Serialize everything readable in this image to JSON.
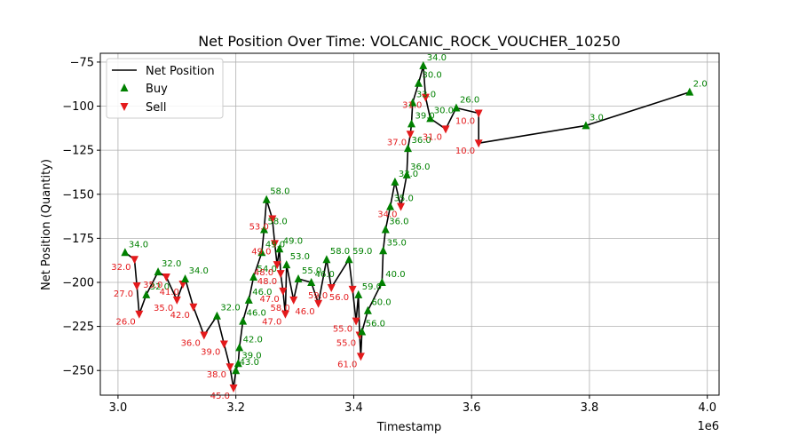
{
  "chart_data": {
    "type": "line",
    "title": "Net Position Over Time: VOLCANIC_ROCK_VOUCHER_10250",
    "xlabel": "Timestamp",
    "ylabel": "Net Position (Quantity)",
    "x_offset_label": "1e6",
    "xlim": [
      2.97,
      4.02
    ],
    "ylim": [
      -264,
      -70
    ],
    "xticks": [
      3.0,
      3.2,
      3.4,
      3.6,
      3.8,
      4.0
    ],
    "xtick_labels": [
      "3.0",
      "3.2",
      "3.4",
      "3.6",
      "3.8",
      "4.0"
    ],
    "yticks": [
      -75,
      -100,
      -125,
      -150,
      -175,
      -200,
      -225,
      -250
    ],
    "ytick_labels": [
      "−75",
      "−100",
      "−125",
      "−150",
      "−175",
      "−200",
      "−225",
      "−250"
    ],
    "grid": true,
    "legend_position": "top-left",
    "legend": [
      {
        "label": "Net Position",
        "kind": "line"
      },
      {
        "label": "Buy",
        "kind": "buy"
      },
      {
        "label": "Sell",
        "kind": "sell"
      }
    ],
    "colors": {
      "line": "#000000",
      "buy": "#008000",
      "sell": "#e41a1c"
    },
    "series": [
      {
        "name": "Net Position",
        "points": [
          {
            "x": 3.012,
            "y": -183,
            "side": "buy",
            "label": "34.0"
          },
          {
            "x": 3.028,
            "y": -187,
            "side": "sell",
            "label": "32.0"
          },
          {
            "x": 3.032,
            "y": -202,
            "side": "sell",
            "label": "27.0"
          },
          {
            "x": 3.036,
            "y": -218,
            "side": "sell",
            "label": "26.0"
          },
          {
            "x": 3.048,
            "y": -207,
            "side": "buy",
            "label": "32.0"
          },
          {
            "x": 3.068,
            "y": -194,
            "side": "buy",
            "label": "32.0"
          },
          {
            "x": 3.082,
            "y": -197,
            "side": "sell",
            "label": "35.0"
          },
          {
            "x": 3.1,
            "y": -210,
            "side": "sell",
            "label": "35.0"
          },
          {
            "x": 3.11,
            "y": -201,
            "side": "sell",
            "label": "41.0"
          },
          {
            "x": 3.114,
            "y": -198,
            "side": "buy",
            "label": "34.0"
          },
          {
            "x": 3.128,
            "y": -214,
            "side": "sell",
            "label": "42.0"
          },
          {
            "x": 3.146,
            "y": -230,
            "side": "sell",
            "label": "36.0"
          },
          {
            "x": 3.168,
            "y": -219,
            "side": "buy",
            "label": "32.0"
          },
          {
            "x": 3.18,
            "y": -235,
            "side": "sell",
            "label": "39.0"
          },
          {
            "x": 3.19,
            "y": -248,
            "side": "sell",
            "label": "38.0"
          },
          {
            "x": 3.196,
            "y": -260,
            "side": "sell",
            "label": "45.0"
          },
          {
            "x": 3.2,
            "y": -250,
            "side": "buy",
            "label": "43.0"
          },
          {
            "x": 3.204,
            "y": -246,
            "side": "buy",
            "label": "39.0"
          },
          {
            "x": 3.206,
            "y": -237,
            "side": "buy",
            "label": "42.0"
          },
          {
            "x": 3.212,
            "y": -222,
            "side": "buy",
            "label": "46.0"
          },
          {
            "x": 3.222,
            "y": -210,
            "side": "buy",
            "label": "46.0"
          },
          {
            "x": 3.23,
            "y": -197,
            "side": "buy",
            "label": "54.0"
          },
          {
            "x": 3.244,
            "y": -183,
            "side": "buy",
            "label": "49.0"
          },
          {
            "x": 3.248,
            "y": -170,
            "side": "buy",
            "label": "58.0"
          },
          {
            "x": 3.252,
            "y": -153,
            "side": "buy",
            "label": "58.0"
          },
          {
            "x": 3.262,
            "y": -164,
            "side": "sell",
            "label": "53.0"
          },
          {
            "x": 3.266,
            "y": -178,
            "side": "sell",
            "label": "49.0"
          },
          {
            "x": 3.27,
            "y": -190,
            "side": "sell",
            "label": "48.0"
          },
          {
            "x": 3.274,
            "y": -181,
            "side": "buy",
            "label": "49.0"
          },
          {
            "x": 3.276,
            "y": -195,
            "side": "sell",
            "label": "48.0"
          },
          {
            "x": 3.28,
            "y": -205,
            "side": "sell",
            "label": "47.0"
          },
          {
            "x": 3.284,
            "y": -218,
            "side": "sell",
            "label": "47.0"
          },
          {
            "x": 3.286,
            "y": -190,
            "side": "buy",
            "label": "53.0"
          },
          {
            "x": 3.298,
            "y": -210,
            "side": "sell",
            "label": "58.0"
          },
          {
            "x": 3.306,
            "y": -198,
            "side": "buy",
            "label": "55.0"
          },
          {
            "x": 3.328,
            "y": -200,
            "side": "buy",
            "label": "46.0"
          },
          {
            "x": 3.34,
            "y": -212,
            "side": "sell",
            "label": "46.0"
          },
          {
            "x": 3.354,
            "y": -187,
            "side": "buy",
            "label": "58.0"
          },
          {
            "x": 3.362,
            "y": -203,
            "side": "sell",
            "label": "59.0"
          },
          {
            "x": 3.392,
            "y": -187,
            "side": "buy",
            "label": "59.0"
          },
          {
            "x": 3.398,
            "y": -204,
            "side": "sell",
            "label": "56.0"
          },
          {
            "x": 3.404,
            "y": -222,
            "side": "sell",
            "label": "55.0"
          },
          {
            "x": 3.408,
            "y": -207,
            "side": "buy",
            "label": "59.0"
          },
          {
            "x": 3.41,
            "y": -230,
            "side": "sell",
            "label": "55.0"
          },
          {
            "x": 3.412,
            "y": -242,
            "side": "sell",
            "label": "61.0"
          },
          {
            "x": 3.414,
            "y": -228,
            "side": "buy",
            "label": "56.0"
          },
          {
            "x": 3.424,
            "y": -216,
            "side": "buy",
            "label": "60.0"
          },
          {
            "x": 3.448,
            "y": -200,
            "side": "buy",
            "label": "40.0"
          },
          {
            "x": 3.45,
            "y": -182,
            "side": "buy",
            "label": "35.0"
          },
          {
            "x": 3.454,
            "y": -170,
            "side": "buy",
            "label": "36.0"
          },
          {
            "x": 3.462,
            "y": -157,
            "side": "buy",
            "label": "35.0"
          },
          {
            "x": 3.47,
            "y": -143,
            "side": "buy",
            "label": "33.0"
          },
          {
            "x": 3.48,
            "y": -157,
            "side": "sell",
            "label": "34.0"
          },
          {
            "x": 3.49,
            "y": -139,
            "side": "buy",
            "label": "36.0"
          },
          {
            "x": 3.492,
            "y": -124,
            "side": "buy",
            "label": "36.0"
          },
          {
            "x": 3.496,
            "y": -116,
            "side": "sell",
            "label": "37.0"
          },
          {
            "x": 3.498,
            "y": -110,
            "side": "buy",
            "label": "39.0"
          },
          {
            "x": 3.5,
            "y": -98,
            "side": "buy",
            "label": "33.0"
          },
          {
            "x": 3.51,
            "y": -87,
            "side": "buy",
            "label": "30.0"
          },
          {
            "x": 3.518,
            "y": -77,
            "side": "buy",
            "label": "34.0"
          },
          {
            "x": 3.522,
            "y": -95,
            "side": "sell",
            "label": "31.0"
          },
          {
            "x": 3.53,
            "y": -107,
            "side": "buy",
            "label": "30.0"
          },
          {
            "x": 3.556,
            "y": -113,
            "side": "sell",
            "label": "31.0"
          },
          {
            "x": 3.574,
            "y": -101,
            "side": "buy",
            "label": "26.0"
          },
          {
            "x": 3.612,
            "y": -104,
            "side": "sell",
            "label": "10.0"
          },
          {
            "x": 3.612,
            "y": -121,
            "side": "sell",
            "label": "10.0"
          },
          {
            "x": 3.794,
            "y": -111,
            "side": "buy",
            "label": "3.0"
          },
          {
            "x": 3.97,
            "y": -92,
            "side": "buy",
            "label": "2.0"
          }
        ]
      }
    ]
  }
}
